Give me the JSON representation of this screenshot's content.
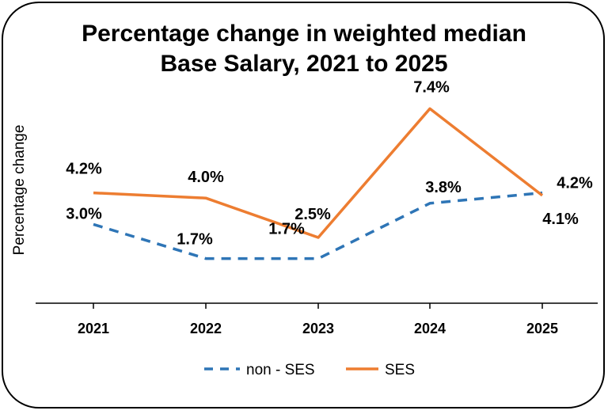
{
  "chart_data": {
    "type": "line",
    "title_lines": [
      "Percentage change in weighted median",
      "Base Salary, 2021 to 2025"
    ],
    "ylabel": "Percentage change",
    "categories": [
      "2021",
      "2022",
      "2023",
      "2024",
      "2025"
    ],
    "series": [
      {
        "name": "non - SES",
        "values": [
          3.0,
          1.7,
          1.7,
          3.8,
          4.2
        ],
        "labels": [
          "3.0%",
          "1.7%",
          "1.7%",
          "3.8%",
          "4.2%"
        ],
        "color": "#2E75B6",
        "dashed": true
      },
      {
        "name": "SES",
        "values": [
          4.2,
          4.0,
          2.5,
          7.4,
          4.1
        ],
        "labels": [
          "4.2%",
          "4.0%",
          "2.5%",
          "7.4%",
          "4.1%"
        ],
        "color": "#ED7D31",
        "dashed": false
      }
    ],
    "ylim": [
      0,
      8
    ],
    "grid": false,
    "legend_position": "bottom"
  }
}
